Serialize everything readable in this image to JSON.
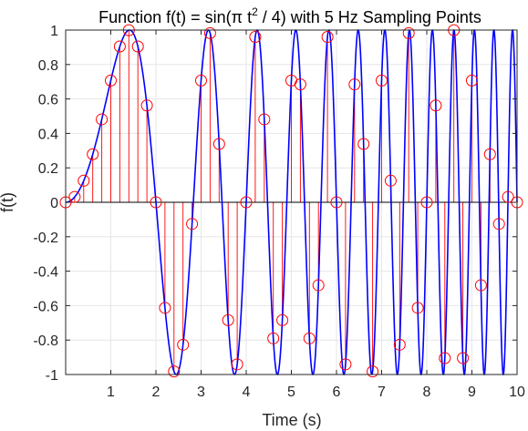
{
  "chart_data": {
    "type": "line",
    "title_main": "Function f(t) = sin(π t",
    "title_sup": "2",
    "title_tail": " / 4) with 5 Hz Sampling Points",
    "xlabel": "Time (s)",
    "ylabel": "f(t)",
    "xlim": [
      0,
      10
    ],
    "ylim": [
      -1,
      1
    ],
    "grid": true,
    "x_ticks": [
      "1",
      "2",
      "3",
      "4",
      "5",
      "6",
      "7",
      "8",
      "9",
      "10"
    ],
    "y_ticks": [
      "1",
      "0.8",
      "0.6",
      "0.4",
      "0.2",
      "0",
      "-0.2",
      "-0.4",
      "-0.6",
      "-0.8",
      "-1"
    ],
    "series": [
      {
        "style": "continuous curve",
        "function": "sin(pi*t^2/4)",
        "t_range": [
          0,
          10
        ],
        "color": "#0000ff"
      },
      {
        "style": "stem with circle markers",
        "sample_rate_hz": 5,
        "sample_interval_s": 0.2,
        "t_range": [
          0,
          10
        ],
        "color": "#ff0000"
      }
    ],
    "colors": {
      "curve": "#0000ff",
      "stem": "#ff0000",
      "grid": "#e6e6e6",
      "axes": "#262626"
    }
  }
}
